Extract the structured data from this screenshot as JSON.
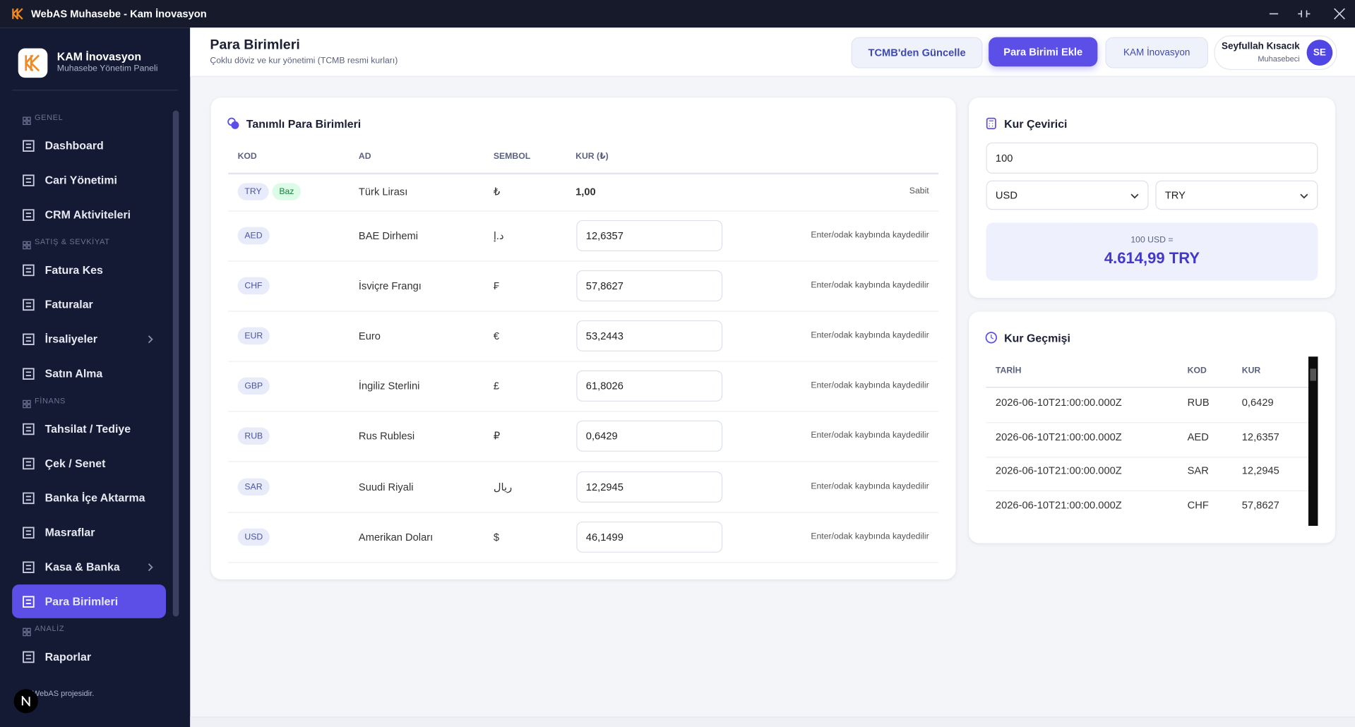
{
  "window": {
    "title": "WebAS Muhasebe - Kam İnovasyon"
  },
  "sidebar": {
    "brand": {
      "name": "KAM İnovasyon",
      "subtitle": "Muhasebe Yönetim Paneli"
    },
    "sections": [
      {
        "title": "GENEL",
        "items": [
          {
            "label": "Dashboard"
          },
          {
            "label": "Cari Yönetimi"
          },
          {
            "label": "CRM Aktiviteleri"
          }
        ]
      },
      {
        "title": "SATIŞ & SEVKİYAT",
        "items": [
          {
            "label": "Fatura Kes"
          },
          {
            "label": "Faturalar"
          },
          {
            "label": "İrsaliyeler",
            "has_submenu": true
          },
          {
            "label": "Satın Alma"
          }
        ]
      },
      {
        "title": "FİNANS",
        "items": [
          {
            "label": "Tahsilat / Tediye"
          },
          {
            "label": "Çek / Senet"
          },
          {
            "label": "Banka İçe Aktarma"
          },
          {
            "label": "Masraflar"
          },
          {
            "label": "Kasa & Banka",
            "has_submenu": true
          },
          {
            "label": "Para Birimleri",
            "active": true
          }
        ]
      },
      {
        "title": "ANALİZ",
        "items": [
          {
            "label": "Raporlar"
          }
        ]
      }
    ],
    "footer": "e WebAS projesidir."
  },
  "header": {
    "title": "Para Birimleri",
    "subtitle": "Çoklu döviz ve kur yönetimi (TCMB resmi kurları)",
    "buttons": [
      "TCMB'den Güncelle",
      "Para Birimi Ekle",
      "KAM İnovasyon"
    ],
    "user": {
      "name": "Seyfullah Kısacık",
      "role": "Muhasebeci",
      "initials": "SE"
    }
  },
  "currencies": {
    "title": "Tanımlı Para Birimleri",
    "columns": [
      "KOD",
      "AD",
      "SEMBOL",
      "KUR (₺)"
    ],
    "rows": [
      {
        "code": "TRY",
        "badge": "Baz",
        "name": "Türk Lirası",
        "symbol": "₺",
        "rate": "1,00",
        "note": "Sabit"
      },
      {
        "code": "AED",
        "name": "BAE Dirhemi",
        "symbol": "د.إ",
        "rate": "12,6357",
        "note": "Enter/odak kaybında kaydedilir"
      },
      {
        "code": "CHF",
        "name": "İsviçre Frangı",
        "symbol": "₣",
        "rate": "57,8627",
        "note": "Enter/odak kaybında kaydedilir"
      },
      {
        "code": "EUR",
        "name": "Euro",
        "symbol": "€",
        "rate": "53,2443",
        "note": "Enter/odak kaybında kaydedilir"
      },
      {
        "code": "GBP",
        "name": "İngiliz Sterlini",
        "symbol": "£",
        "rate": "61,8026",
        "note": "Enter/odak kaybında kaydedilir"
      },
      {
        "code": "RUB",
        "name": "Rus Rublesi",
        "symbol": "₽",
        "rate": "0,6429",
        "note": "Enter/odak kaybında kaydedilir"
      },
      {
        "code": "SAR",
        "name": "Suudi Riyali",
        "symbol": "ريال",
        "rate": "12,2945",
        "note": "Enter/odak kaybında kaydedilir"
      },
      {
        "code": "USD",
        "name": "Amerikan Doları",
        "symbol": "$",
        "rate": "46,1499",
        "note": "Enter/odak kaybında kaydedilir"
      }
    ]
  },
  "converter": {
    "title": "Kur Çevirici",
    "amount": "100",
    "from": "USD",
    "to": "TRY",
    "result_label": "100 USD =",
    "result": "4.614,99 TRY"
  },
  "history": {
    "title": "Kur Geçmişi",
    "columns": [
      "TARİH",
      "KOD",
      "KUR"
    ],
    "rows": [
      [
        "2026-06-10T21:00:00.000Z",
        "RUB",
        "0,6429"
      ],
      [
        "2026-06-10T21:00:00.000Z",
        "AED",
        "12,6357"
      ],
      [
        "2026-06-10T21:00:00.000Z",
        "SAR",
        "12,2945"
      ],
      [
        "2026-06-10T21:00:00.000Z",
        "CHF",
        "57,8627"
      ]
    ]
  }
}
